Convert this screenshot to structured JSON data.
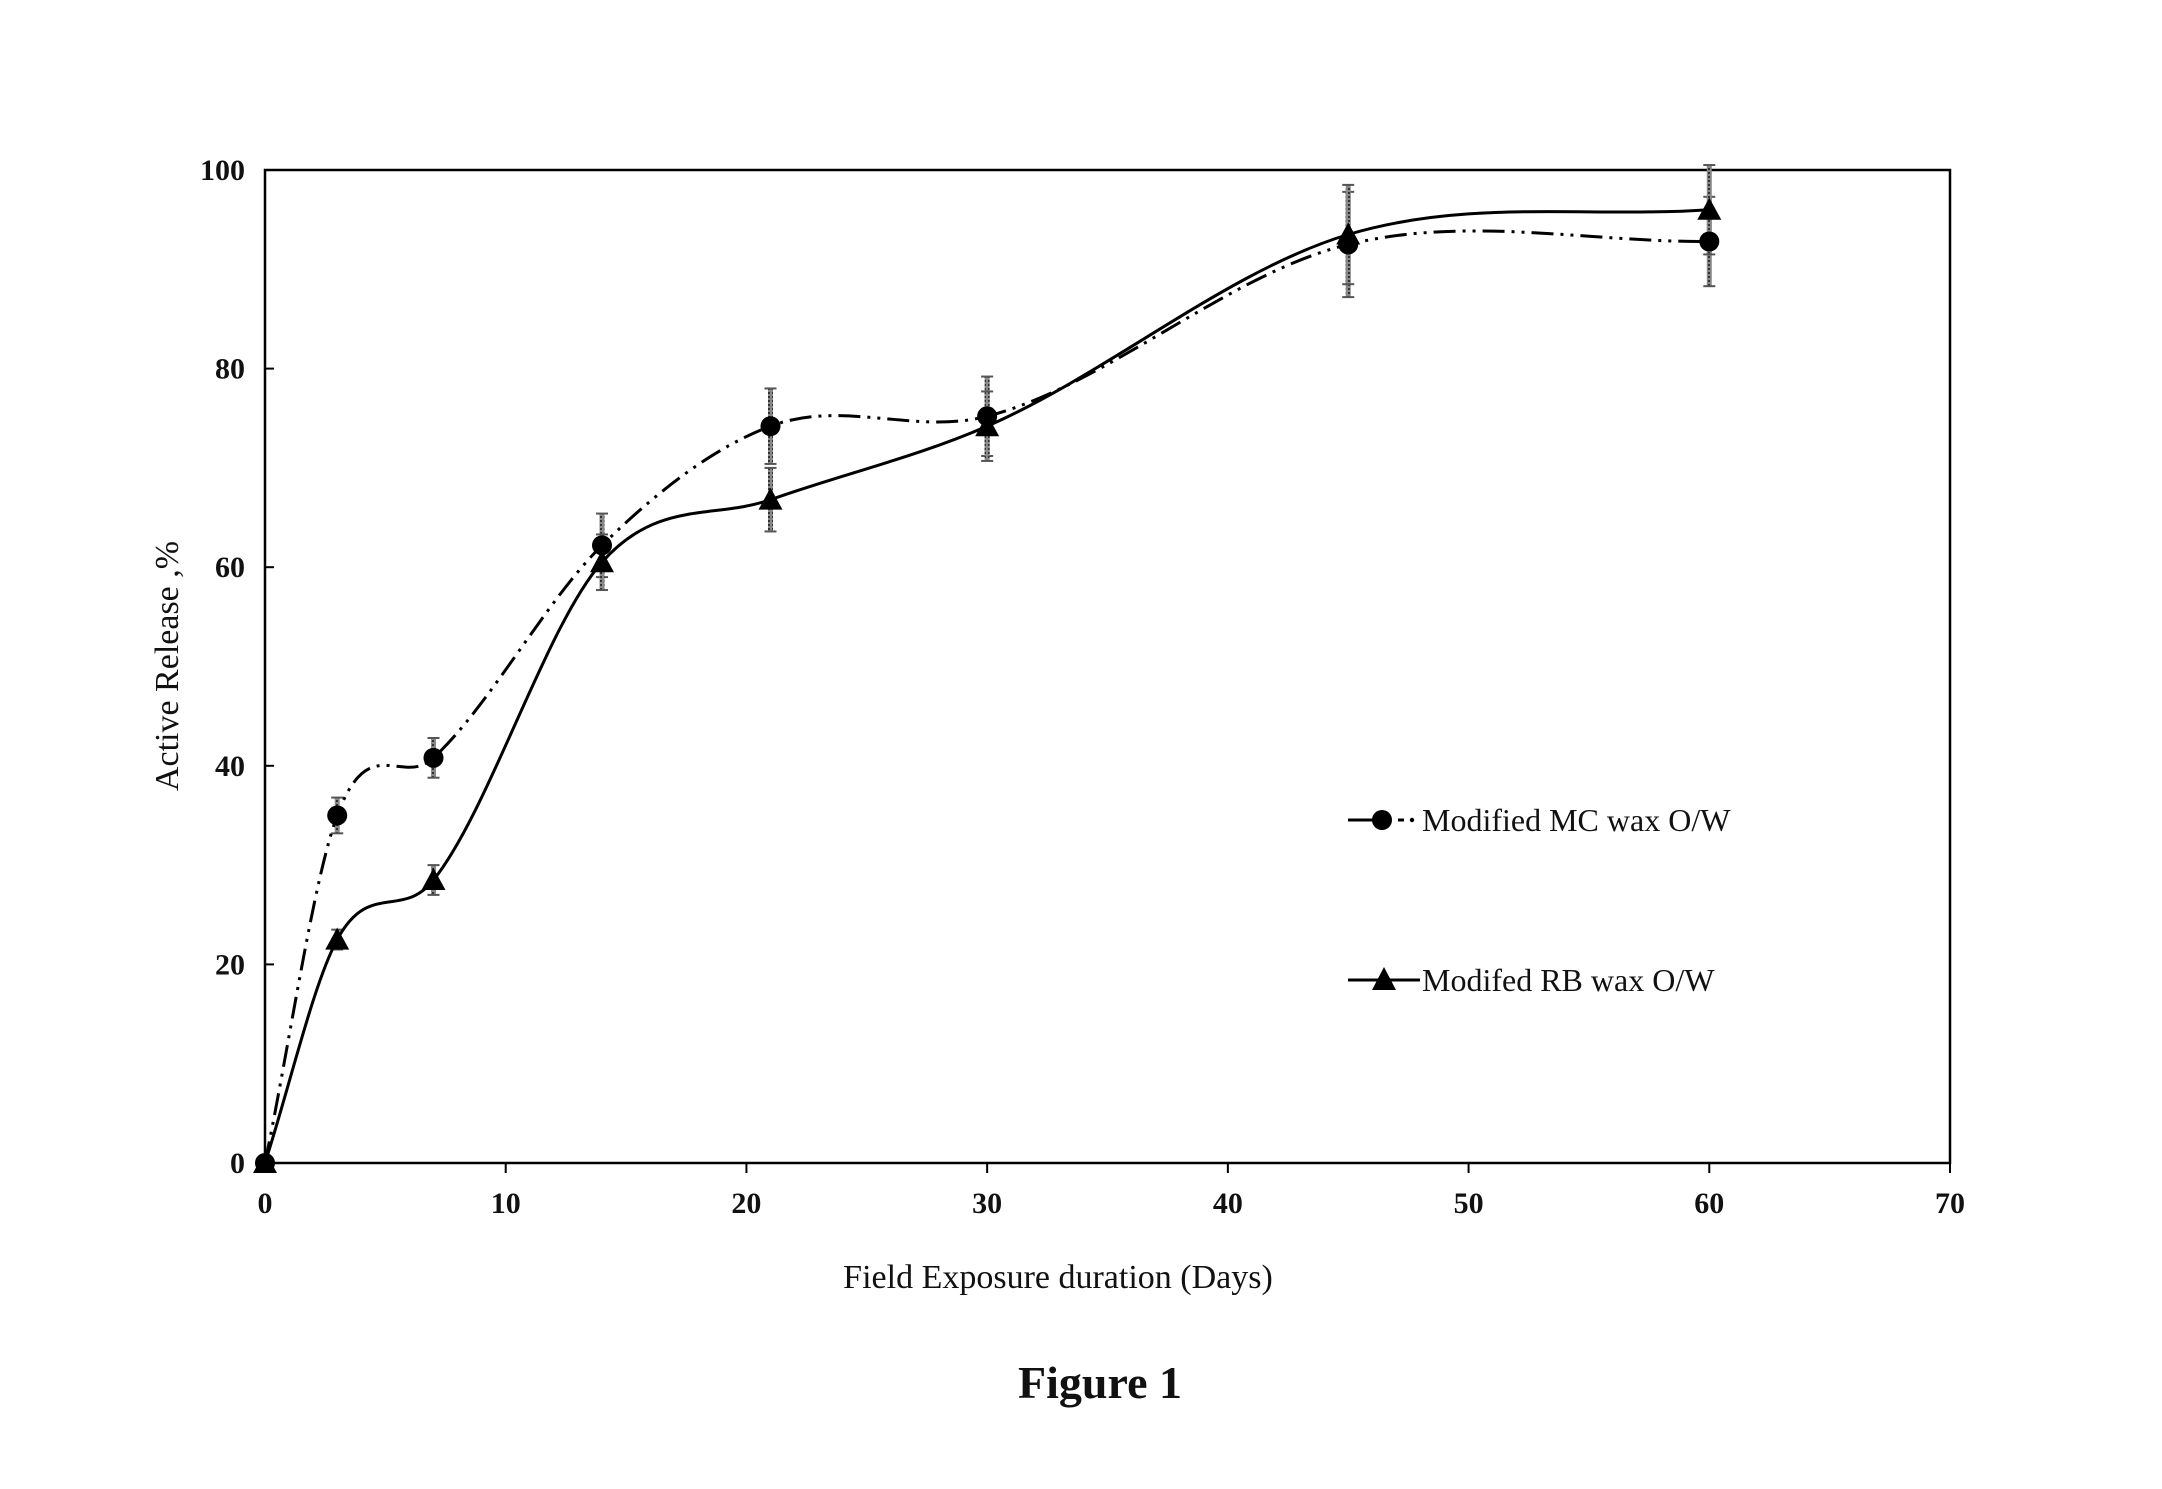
{
  "chart_data": {
    "type": "line",
    "title": "",
    "xlabel": "Field  Exposure duration (Days)",
    "ylabel": "Active Release ,%",
    "xlim": [
      0,
      70
    ],
    "ylim": [
      0,
      100
    ],
    "xticks": [
      0,
      10,
      20,
      30,
      40,
      50,
      60,
      70
    ],
    "yticks": [
      0,
      20,
      40,
      60,
      80,
      100
    ],
    "grid": false,
    "legend_position": "right-center",
    "series": [
      {
        "name": "Modified MC wax O/W",
        "marker": "circle",
        "line_style": "dash-dot-dot",
        "x": [
          0,
          3,
          7,
          14,
          21,
          30,
          45,
          60
        ],
        "y": [
          0,
          35,
          40.8,
          62.2,
          74.2,
          75.2,
          92.5,
          92.8
        ],
        "error": [
          0,
          1.8,
          2.0,
          3.2,
          3.8,
          4.0,
          5.3,
          4.5
        ]
      },
      {
        "name": "Modifed RB wax  O/W",
        "marker": "triangle",
        "line_style": "solid",
        "x": [
          0,
          3,
          7,
          14,
          21,
          30,
          45,
          60
        ],
        "y": [
          0,
          22.5,
          28.5,
          60.5,
          66.8,
          74.2,
          93.5,
          96
        ],
        "error": [
          0,
          1.0,
          1.5,
          2.8,
          3.2,
          3.5,
          5.0,
          4.5
        ]
      }
    ]
  },
  "caption": "Figure 1"
}
